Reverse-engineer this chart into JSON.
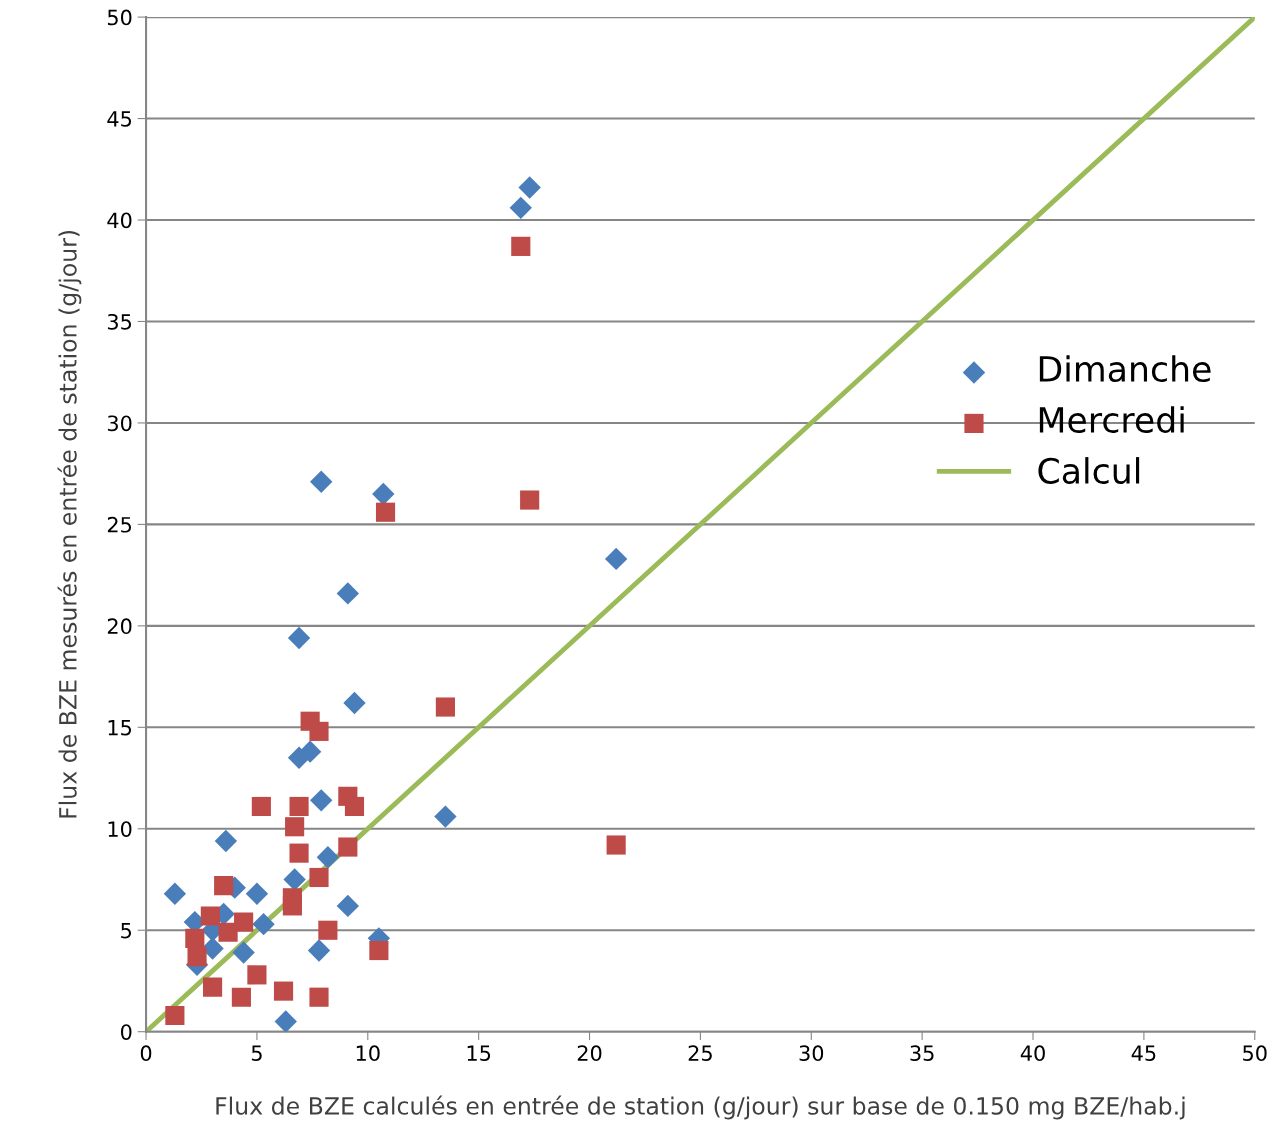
{
  "chart_data": {
    "type": "scatter",
    "xlabel": "Flux de BZE calculés en entrée de station (g/jour) sur base de 0.150 mg BZE/hab.j",
    "ylabel": "Flux de BZE mesurés en entrée de station (g/jour)",
    "xlim": [
      0,
      50
    ],
    "xticks": [
      0,
      5,
      10,
      15,
      20,
      25,
      30,
      35,
      40,
      45,
      50
    ],
    "ylim": [
      0,
      50
    ],
    "yticks": [
      0,
      5,
      10,
      15,
      20,
      25,
      30,
      35,
      40,
      45,
      50
    ],
    "grid": "y",
    "legend": "right",
    "series": [
      {
        "name": "Dimanche",
        "marker": "diamond",
        "color": "#4a7ebb",
        "x": [
          1.3,
          2.2,
          2.3,
          3.0,
          3.0,
          3.6,
          4.0,
          3.5,
          4.4,
          5.0,
          5.3,
          6.3,
          6.7,
          6.9,
          7.4,
          6.9,
          7.9,
          7.9,
          7.8,
          8.2,
          9.1,
          9.1,
          9.4,
          10.7,
          10.5,
          13.5,
          16.9,
          17.3,
          21.2
        ],
        "values": [
          6.8,
          5.4,
          3.3,
          4.1,
          5.0,
          9.4,
          7.1,
          5.8,
          3.9,
          6.8,
          5.3,
          0.5,
          7.5,
          13.5,
          13.8,
          19.4,
          27.1,
          11.4,
          4.0,
          8.6,
          6.2,
          21.6,
          16.2,
          26.5,
          4.6,
          10.6,
          40.6,
          41.6,
          23.3
        ]
      },
      {
        "name": "Mercredi",
        "marker": "square",
        "color": "#be4b48",
        "x": [
          1.3,
          2.2,
          2.3,
          2.9,
          3.0,
          3.5,
          3.7,
          4.3,
          4.4,
          5.0,
          5.2,
          6.2,
          6.6,
          6.6,
          6.7,
          6.9,
          6.9,
          7.4,
          7.8,
          7.8,
          7.8,
          8.2,
          9.1,
          9.1,
          9.4,
          10.8,
          10.5,
          13.5,
          16.9,
          17.3,
          21.2
        ],
        "values": [
          0.8,
          4.6,
          3.7,
          5.7,
          2.2,
          7.2,
          4.9,
          1.7,
          5.4,
          2.8,
          11.1,
          2.0,
          6.6,
          6.2,
          10.1,
          11.1,
          8.8,
          15.3,
          14.8,
          7.6,
          1.7,
          5.0,
          11.6,
          9.1,
          11.1,
          25.6,
          4.0,
          16.0,
          38.7,
          26.2,
          9.2
        ]
      },
      {
        "name": "Calcul",
        "type": "line",
        "marker": "none",
        "line_style": "solid",
        "color": "#9bbb59",
        "x": [
          0,
          50
        ],
        "values": [
          0,
          50
        ]
      }
    ]
  }
}
